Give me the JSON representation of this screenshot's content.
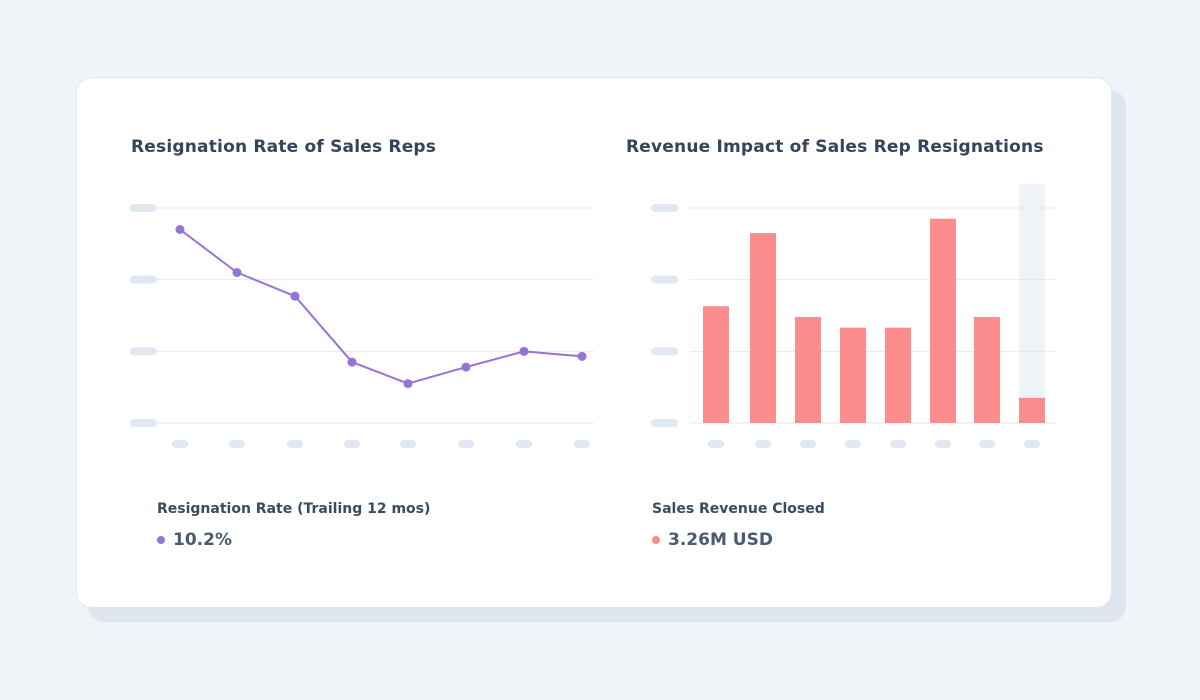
{
  "colors": {
    "line": "#9673d4",
    "bar": "#fc8d8c",
    "highlight_band": "#eff3f8",
    "grid": "#e6eaf0",
    "placeholder": "#e1e8f1"
  },
  "left": {
    "title": "Resignation Rate of Sales Reps",
    "metric_label": "Resignation Rate (Trailing 12 mos)",
    "metric_value": "10.2%"
  },
  "right": {
    "title": "Revenue Impact of Sales Rep Resignations",
    "metric_label": "Sales Revenue Closed",
    "metric_value": "3.26M USD"
  },
  "chart_data": [
    {
      "type": "line",
      "title": "Resignation Rate of Sales Reps",
      "xlabel": "",
      "ylabel": "",
      "x": [
        1,
        2,
        3,
        4,
        5,
        6,
        7,
        8
      ],
      "values": [
        2.7,
        2.1,
        1.77,
        0.85,
        0.55,
        0.78,
        1.0,
        0.93
      ],
      "ylim": [
        0,
        3
      ],
      "grid": true,
      "tick_labels": "placeholder"
    },
    {
      "type": "bar",
      "title": "Revenue Impact of Sales Rep Resignations",
      "xlabel": "",
      "ylabel": "",
      "categories": [
        1,
        2,
        3,
        4,
        5,
        6,
        7,
        8
      ],
      "values": [
        1.63,
        2.65,
        1.48,
        1.33,
        1.33,
        2.85,
        1.48,
        0.35
      ],
      "highlight_index": 7,
      "ylim": [
        0,
        3
      ],
      "grid": true,
      "tick_labels": "placeholder"
    }
  ]
}
